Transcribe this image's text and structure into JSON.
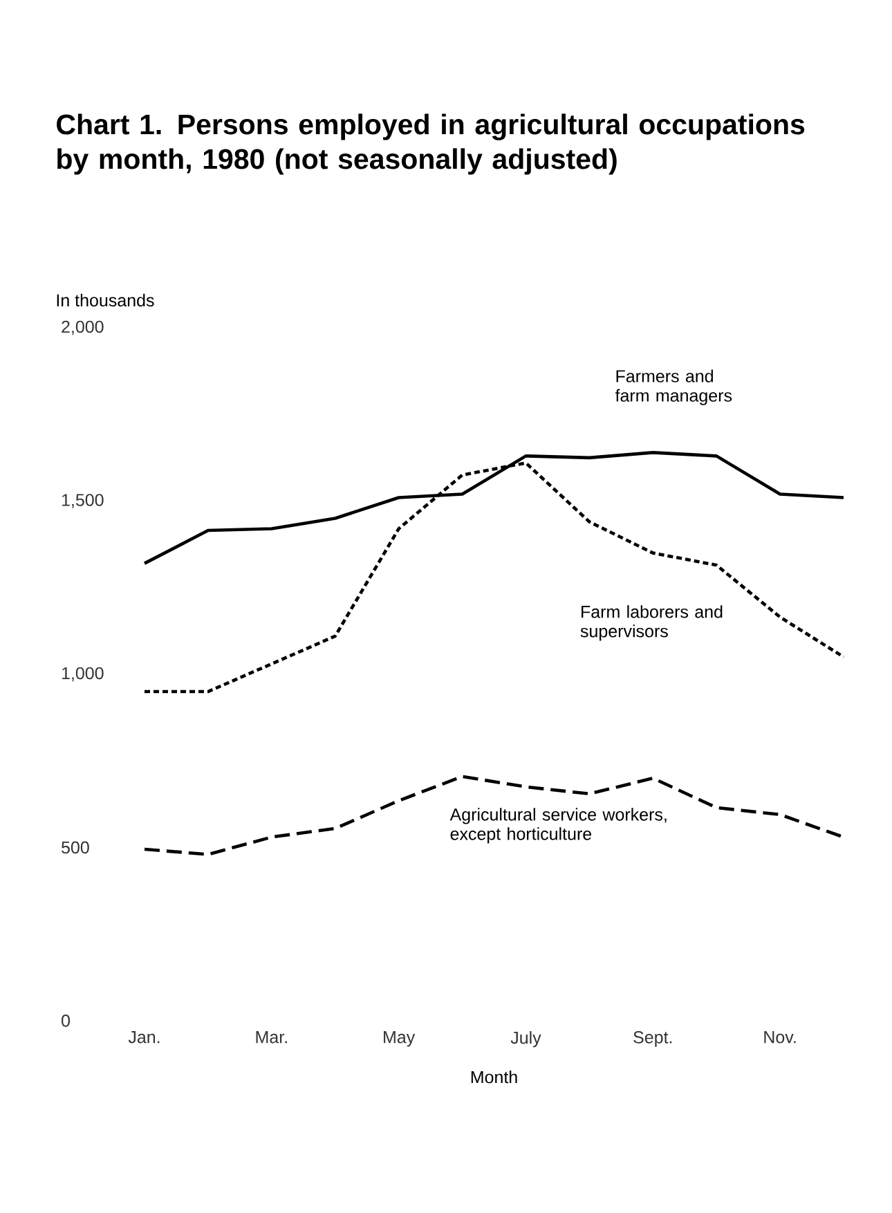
{
  "chart_data": {
    "type": "line",
    "title": "Chart 1.  Persons employed in agricultural occupations by month, 1980 (not seasonally adjusted)",
    "xlabel": "Month",
    "ylabel": "In thousands",
    "categories": [
      "Jan.",
      null,
      "Mar.",
      null,
      "May",
      null,
      "July",
      null,
      "Sept.",
      null,
      "Nov.",
      null
    ],
    "ylim": [
      0,
      2000
    ],
    "yticks": [
      0,
      500,
      {
        "value": 1000,
        "label": "1,000"
      },
      {
        "value": 1500,
        "label": "1,500"
      },
      {
        "value": 2000,
        "label": "2,000"
      }
    ],
    "series": [
      {
        "name": "Farmers and farm managers",
        "color": "#000000",
        "line_style": "solid",
        "values": [
          1320,
          1415,
          1420,
          1450,
          1510,
          1520,
          1630,
          1625,
          1640,
          1630,
          1520,
          1510
        ]
      },
      {
        "name": "Farm laborers and supervisors",
        "color": "#000000",
        "line_style": "dotted",
        "values": [
          950,
          950,
          1030,
          1110,
          1420,
          1575,
          1610,
          1440,
          1350,
          1315,
          1165,
          1050
        ]
      },
      {
        "name": "Agricultural service workers, except horticulture",
        "color": "#000000",
        "line_style": "dashed",
        "values": [
          495,
          480,
          530,
          555,
          635,
          705,
          675,
          655,
          700,
          615,
          595,
          530
        ]
      }
    ]
  }
}
